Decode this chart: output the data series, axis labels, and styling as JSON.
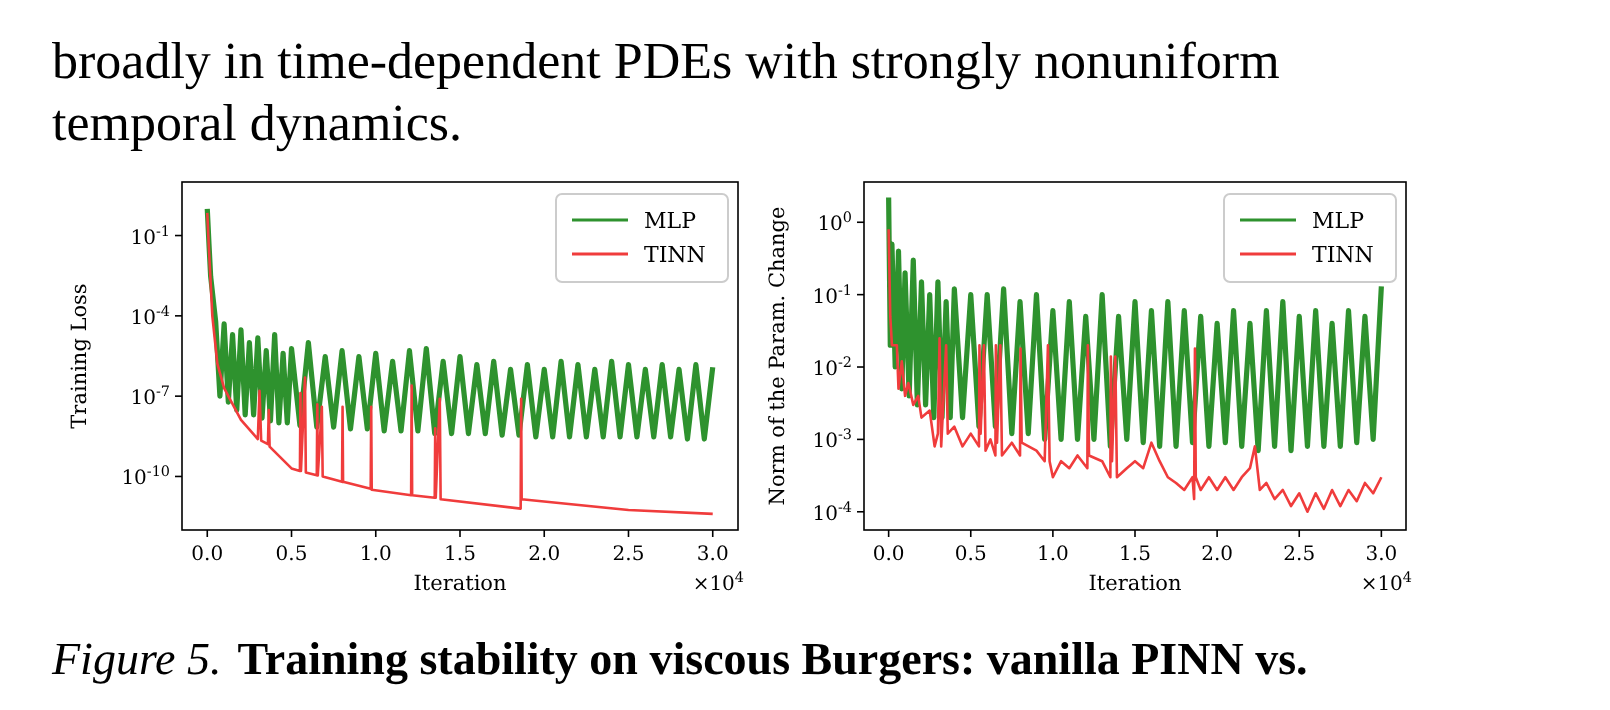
{
  "chart_data": [
    {
      "type": "line",
      "xlabel": "Iteration",
      "ylabel": "Training Loss",
      "log": "y",
      "grid": false,
      "legend": "top right",
      "line_style": "solid",
      "marker": "none",
      "annotations": [
        "broadly in time-dependent PDEs with strongly nonuniform",
        "temporal dynamics.",
        "×10$^{4}$",
        "Figure 5.",
        "Training stability on viscous Burgers: vanilla PINN vs."
      ],
      "xlim": [
        -0.15,
        3.15
      ],
      "xticks": [
        {
          "value": 0,
          "label": "0.0"
        },
        {
          "value": 0.5,
          "label": "0.5"
        },
        {
          "value": 1,
          "label": "1.0"
        },
        {
          "value": 1.5,
          "label": "1.5"
        },
        {
          "value": 2,
          "label": "2.0"
        },
        {
          "value": 2.5,
          "label": "2.5"
        },
        {
          "value": 3,
          "label": "3.0"
        }
      ],
      "ylim": [
        1e-12,
        10
      ],
      "yticks": [
        {
          "value": 1e-10,
          "label": "10$^{-10}$"
        },
        {
          "value": 1e-07,
          "label": "10$^{-7}$"
        },
        {
          "value": 0.0001,
          "label": "10$^{-4}$"
        },
        {
          "value": 0.1,
          "label": "10$^{-1}$"
        }
      ],
      "series": [
        {
          "name": "MLP",
          "color": "#2e922e",
          "x": [
            0,
            0.01,
            0.02,
            0.05,
            0.075,
            0.1,
            0.125,
            0.15,
            0.175,
            0.2,
            0.225,
            0.25,
            0.275,
            0.3,
            0.325,
            0.35,
            0.375,
            0.4,
            0.425,
            0.45,
            0.475,
            0.5,
            0.55,
            0.6,
            0.65,
            0.7,
            0.75,
            0.8,
            0.85,
            0.9,
            0.95,
            1.0,
            1.05,
            1.1,
            1.15,
            1.2,
            1.25,
            1.3,
            1.35,
            1.4,
            1.45,
            1.5,
            1.55,
            1.6,
            1.65,
            1.7,
            1.75,
            1.8,
            1.85,
            1.9,
            1.95,
            2.0,
            2.05,
            2.1,
            2.15,
            2.2,
            2.25,
            2.3,
            2.35,
            2.4,
            2.45,
            2.5,
            2.55,
            2.6,
            2.65,
            2.7,
            2.75,
            2.8,
            2.85,
            2.9,
            2.95,
            3.0
          ],
          "values": [
            1.0,
            0.05,
            0.003,
            6e-05,
            1e-07,
            5e-05,
            6e-08,
            2e-05,
            3e-08,
            3e-05,
            2e-08,
            1e-05,
            2e-08,
            1.5e-05,
            1.5e-08,
            5e-06,
            1.2e-08,
            2e-05,
            1e-08,
            4e-06,
            1e-08,
            6e-06,
            8e-09,
            1e-05,
            7e-09,
            3e-06,
            7e-09,
            5e-06,
            6e-09,
            3e-06,
            6e-09,
            4e-06,
            5e-09,
            2e-06,
            5e-09,
            5e-06,
            5e-09,
            6e-06,
            4e-09,
            2e-06,
            4e-09,
            3e-06,
            4e-09,
            1.5e-06,
            4e-09,
            2e-06,
            3.5e-09,
            1e-06,
            3.5e-09,
            1.5e-06,
            3e-09,
            1e-06,
            3e-09,
            2e-06,
            3e-09,
            1.5e-06,
            3e-09,
            1e-06,
            3e-09,
            2e-06,
            3e-09,
            1.5e-06,
            3e-09,
            1e-06,
            3e-09,
            1.5e-06,
            3e-09,
            1e-06,
            2.5e-09,
            1.5e-06,
            2.5e-09,
            1.2e-06
          ]
        },
        {
          "name": "TINN",
          "color": "#f03c3c",
          "x": [
            0,
            0.01,
            0.03,
            0.06,
            0.1,
            0.2,
            0.3,
            0.31,
            0.32,
            0.36,
            0.365,
            0.37,
            0.5,
            0.55,
            0.553,
            0.556,
            0.58,
            0.585,
            0.65,
            0.653,
            0.656,
            0.68,
            0.685,
            0.8,
            0.803,
            0.806,
            0.97,
            0.973,
            0.976,
            1.21,
            1.213,
            1.216,
            1.35,
            1.353,
            1.356,
            1.38,
            1.385,
            1.86,
            1.863,
            1.866,
            2.5,
            3.0
          ],
          "values": [
            0.7,
            0.03,
            0.0001,
            1.6e-06,
            2e-07,
            1.3e-08,
            2.5e-09,
            1.6e-07,
            2.2e-09,
            1.6e-09,
            3e-08,
            1.3e-09,
            2e-10,
            1.6e-10,
            1.3e-07,
            1.6e-10,
            5e-07,
            1.4e-10,
            1.1e-10,
            5e-08,
            1.1e-10,
            4e-08,
            1e-10,
            6.3e-11,
            4e-08,
            6.3e-11,
            3.5e-11,
            4e-08,
            3.2e-11,
            2e-11,
            2.5e-07,
            2e-11,
            1.6e-11,
            6.3e-09,
            1.6e-11,
            8e-08,
            1.4e-11,
            6.3e-12,
            8e-08,
            1.4e-11,
            5.6e-12,
            4e-12
          ]
        }
      ]
    },
    {
      "type": "line",
      "xlabel": "Iteration",
      "ylabel": "Norm of the Param. Change",
      "log": "y",
      "grid": false,
      "legend": "top right",
      "line_style": "solid",
      "marker": "none",
      "annotations": [
        "×10$^{4}$"
      ],
      "xlim": [
        -0.15,
        3.15
      ],
      "xticks": [
        {
          "value": 0,
          "label": "0.0"
        },
        {
          "value": 0.5,
          "label": "0.5"
        },
        {
          "value": 1,
          "label": "1.0"
        },
        {
          "value": 1.5,
          "label": "1.5"
        },
        {
          "value": 2,
          "label": "2.0"
        },
        {
          "value": 2.5,
          "label": "2.5"
        },
        {
          "value": 3,
          "label": "3.0"
        }
      ],
      "ylim": [
        5.6e-05,
        3.6
      ],
      "yticks": [
        {
          "value": 0.0001,
          "label": "10$^{-4}$"
        },
        {
          "value": 0.001,
          "label": "10$^{-3}$"
        },
        {
          "value": 0.01,
          "label": "10$^{-2}$"
        },
        {
          "value": 0.1,
          "label": "10$^{-1}$"
        },
        {
          "value": 1,
          "label": "10$^{0}$"
        }
      ],
      "series": [
        {
          "name": "MLP",
          "color": "#2e922e",
          "x": [
            0,
            0.01,
            0.02,
            0.04,
            0.06,
            0.08,
            0.1,
            0.125,
            0.15,
            0.175,
            0.2,
            0.225,
            0.25,
            0.275,
            0.3,
            0.325,
            0.35,
            0.375,
            0.4,
            0.45,
            0.5,
            0.55,
            0.6,
            0.65,
            0.7,
            0.75,
            0.8,
            0.85,
            0.9,
            0.95,
            1.0,
            1.05,
            1.1,
            1.15,
            1.2,
            1.25,
            1.3,
            1.35,
            1.4,
            1.45,
            1.5,
            1.55,
            1.6,
            1.65,
            1.7,
            1.75,
            1.8,
            1.85,
            1.9,
            1.95,
            2.0,
            2.05,
            2.1,
            2.15,
            2.2,
            2.25,
            2.3,
            2.35,
            2.4,
            2.45,
            2.5,
            2.55,
            2.6,
            2.65,
            2.7,
            2.75,
            2.8,
            2.85,
            2.9,
            2.95,
            3.0
          ],
          "values": [
            2.2,
            0.02,
            0.5,
            0.01,
            0.4,
            0.005,
            0.2,
            0.004,
            0.3,
            0.003,
            0.15,
            0.003,
            0.1,
            0.002,
            0.15,
            0.002,
            0.08,
            0.002,
            0.12,
            0.002,
            0.1,
            0.0015,
            0.1,
            0.0015,
            0.12,
            0.0012,
            0.08,
            0.0012,
            0.1,
            0.001,
            0.06,
            0.001,
            0.08,
            0.001,
            0.05,
            0.001,
            0.1,
            0.0008,
            0.05,
            0.001,
            0.08,
            0.0009,
            0.06,
            0.0008,
            0.08,
            0.0008,
            0.06,
            0.0009,
            0.05,
            0.0008,
            0.04,
            0.0009,
            0.06,
            0.0008,
            0.04,
            0.0007,
            0.06,
            0.0008,
            0.08,
            0.0007,
            0.05,
            0.0008,
            0.06,
            0.0008,
            0.04,
            0.0008,
            0.06,
            0.0009,
            0.05,
            0.001,
            0.13
          ]
        },
        {
          "name": "TINN",
          "color": "#f03c3c",
          "x": [
            0,
            0.01,
            0.02,
            0.05,
            0.06,
            0.08,
            0.1,
            0.12,
            0.15,
            0.18,
            0.2,
            0.25,
            0.28,
            0.3,
            0.31,
            0.32,
            0.35,
            0.36,
            0.4,
            0.45,
            0.5,
            0.55,
            0.553,
            0.56,
            0.58,
            0.59,
            0.62,
            0.65,
            0.653,
            0.66,
            0.68,
            0.69,
            0.75,
            0.8,
            0.803,
            0.81,
            0.9,
            0.95,
            0.97,
            0.98,
            1.0,
            1.05,
            1.1,
            1.15,
            1.21,
            1.213,
            1.22,
            1.3,
            1.35,
            1.353,
            1.36,
            1.38,
            1.39,
            1.45,
            1.5,
            1.55,
            1.6,
            1.65,
            1.7,
            1.75,
            1.8,
            1.85,
            1.86,
            1.865,
            1.87,
            1.9,
            1.95,
            2.0,
            2.05,
            2.1,
            2.15,
            2.2,
            2.23,
            2.26,
            2.3,
            2.35,
            2.4,
            2.45,
            2.5,
            2.55,
            2.6,
            2.65,
            2.7,
            2.75,
            2.8,
            2.85,
            2.9,
            2.95,
            3.0
          ],
          "values": [
            0.8,
            0.05,
            0.02,
            0.02,
            0.005,
            0.012,
            0.004,
            0.006,
            0.003,
            0.004,
            0.002,
            0.0025,
            0.0008,
            0.0012,
            0.025,
            0.0008,
            0.02,
            0.0012,
            0.0015,
            0.0008,
            0.0012,
            0.0008,
            0.02,
            0.0012,
            0.02,
            0.0007,
            0.001,
            0.0006,
            0.02,
            0.0009,
            0.02,
            0.0006,
            0.0009,
            0.0006,
            0.018,
            0.0009,
            0.0007,
            0.0005,
            0.02,
            0.0005,
            0.0003,
            0.0005,
            0.0004,
            0.0006,
            0.0004,
            0.02,
            0.0006,
            0.0005,
            0.0003,
            0.014,
            0.0005,
            0.014,
            0.0003,
            0.0004,
            0.0005,
            0.0004,
            0.0009,
            0.0005,
            0.0003,
            0.00025,
            0.0002,
            0.0003,
            0.00015,
            0.018,
            0.0003,
            0.0002,
            0.0003,
            0.0002,
            0.0003,
            0.0002,
            0.0003,
            0.0004,
            0.0008,
            0.0002,
            0.00025,
            0.00015,
            0.0002,
            0.00012,
            0.00018,
            0.0001,
            0.00018,
            0.00011,
            0.0002,
            0.00012,
            0.0002,
            0.00014,
            0.00025,
            0.00018,
            0.0003
          ]
        }
      ]
    }
  ]
}
